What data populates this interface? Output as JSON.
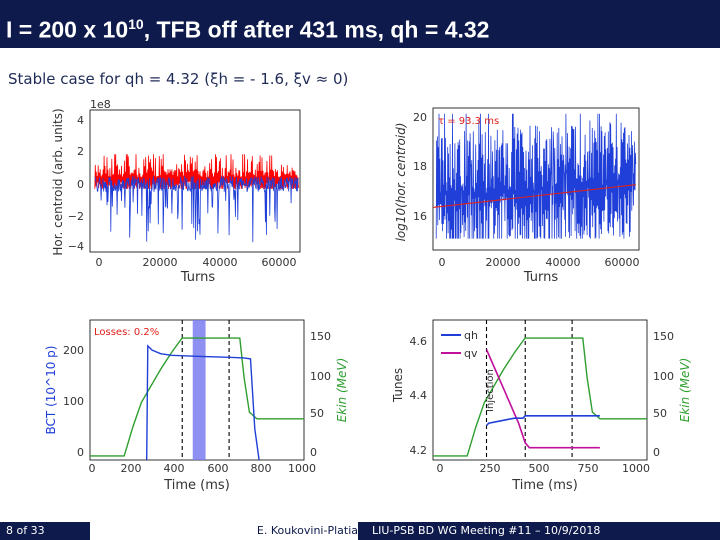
{
  "slide": {
    "title_prefix": "I = 200 x 10",
    "title_exp": "10",
    "title_suffix": ", TFB off after 431 ms, qh = 4.32",
    "subtitle": "Stable case for qh = 4.32 (ξh = - 1.6, ξv ≈ 0)"
  },
  "footer": {
    "page": "8 of 33",
    "author": "E. Koukovini-Platia",
    "meeting": "LIU-PSB BD WG Meeting #11 – 10/9/2018"
  },
  "colors": {
    "navy": "#0d1a4b",
    "red": "#ff0000",
    "blue": "#1f3fd8",
    "green": "#2e9e2e",
    "magenta": "#c0109c",
    "shade": "#7a7cf0"
  },
  "chart_data": [
    {
      "type": "line",
      "ylabel": "Hor. centroid (arb. units)",
      "xlabel": "Turns",
      "exponent": "1e8",
      "xlim": [
        0,
        65000
      ],
      "ylim": [
        -4.4,
        4.6
      ],
      "xticks": [
        "0",
        "20000",
        "40000",
        "60000"
      ],
      "yticks": [
        "4",
        "2",
        "0",
        "−2",
        "−4"
      ],
      "series": [
        {
          "color": "red",
          "description": "envelope",
          "range": [
            -0.4,
            1.8
          ]
        },
        {
          "color": "blue",
          "description": "centroid",
          "range": [
            -4.0,
            0.6
          ]
        }
      ]
    },
    {
      "type": "line",
      "ylabel": "log10(hor. centroid)",
      "xlabel": "Turns",
      "annotation": "τ = 93.3 ms",
      "xlim": [
        0,
        65000
      ],
      "ylim": [
        15.2,
        20.2
      ],
      "xticks": [
        "0",
        "20000",
        "40000",
        "60000"
      ],
      "yticks": [
        "20",
        "18",
        "16"
      ],
      "fit": {
        "x": [
          0,
          64000
        ],
        "y": [
          16.7,
          17.5
        ]
      }
    },
    {
      "type": "line",
      "ylabel": "BCT (10^10 p)",
      "y2label": "Ekin (MeV)",
      "xlabel": "Time (ms)",
      "annotation": "Losses: 0.2%",
      "xlim": [
        0,
        1000
      ],
      "ylim": [
        0,
        270
      ],
      "y2lim": [
        0,
        170
      ],
      "xticks": [
        "0",
        "200",
        "400",
        "600",
        "800",
        "1000"
      ],
      "yticks": [
        "200",
        "100",
        "0"
      ],
      "y2ticks": [
        "150",
        "100",
        "50",
        "0"
      ],
      "markers_ms": [
        431,
        650
      ],
      "shaded_ms": [
        480,
        540
      ],
      "series": [
        {
          "name": "BCT",
          "color": "blue",
          "x": [
            265,
            270,
            290,
            330,
            380,
            500,
            650,
            720,
            750,
            770,
            790
          ],
          "y": [
            0,
            220,
            212,
            205,
            202,
            200,
            198,
            197,
            195,
            60,
            0
          ]
        },
        {
          "name": "Ekin",
          "color": "green",
          "x": [
            0,
            160,
            200,
            240,
            330,
            380,
            430,
            700,
            720,
            745,
            780,
            1000
          ],
          "y": [
            5,
            5,
            40,
            70,
            110,
            130,
            148,
            148,
            100,
            58,
            50,
            50
          ]
        }
      ]
    },
    {
      "type": "line",
      "ylabel": "Tunes",
      "y2label": "Ekin (MeV)",
      "xlabel": "Time (ms)",
      "annotation": "Injection",
      "xlim": [
        0,
        1000
      ],
      "ylim": [
        4.15,
        4.72
      ],
      "y2lim": [
        0,
        170
      ],
      "xticks": [
        "0",
        "250",
        "500",
        "750",
        "1000"
      ],
      "yticks": [
        "4.6",
        "4.4",
        "4.2"
      ],
      "y2ticks": [
        "150",
        "100",
        "50",
        "0"
      ],
      "markers_ms": [
        250,
        431,
        650
      ],
      "series": [
        {
          "name": "qh",
          "color": "blue",
          "x": [
            250,
            260,
            320,
            380,
            420,
            431,
            500,
            650,
            780
          ],
          "y": [
            4.29,
            4.3,
            4.31,
            4.32,
            4.32,
            4.33,
            4.33,
            4.33,
            4.33
          ]
        },
        {
          "name": "qv",
          "color": "magenta",
          "x": [
            250,
            300,
            350,
            400,
            431,
            450,
            500,
            650,
            780
          ],
          "y": [
            4.6,
            4.5,
            4.4,
            4.3,
            4.22,
            4.2,
            4.2,
            4.2,
            4.2
          ]
        },
        {
          "name": "Ekin",
          "color": "green",
          "x": [
            0,
            160,
            200,
            240,
            330,
            380,
            430,
            700,
            720,
            745,
            780,
            1000
          ],
          "y": [
            5,
            5,
            40,
            70,
            110,
            130,
            148,
            148,
            100,
            58,
            50,
            50
          ]
        }
      ]
    }
  ]
}
